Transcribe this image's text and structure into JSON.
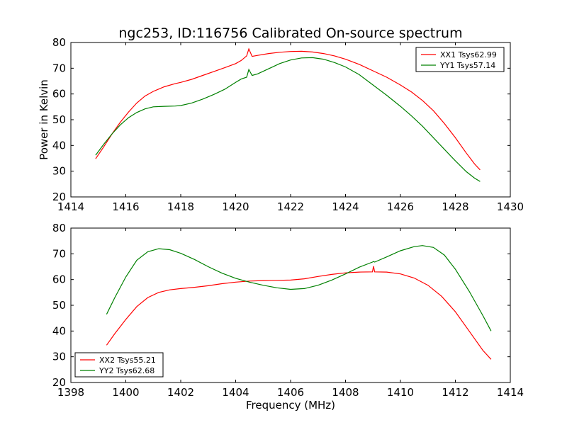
{
  "title": "ngc253, ID:116756 Calibrated On-source spectrum",
  "chart_data": [
    {
      "type": "line",
      "title": "ngc253, ID:116756 Calibrated On-source spectrum",
      "xlabel": "",
      "ylabel": "Power in Kelvin",
      "xlim": [
        1414,
        1430
      ],
      "ylim": [
        20,
        80
      ],
      "xticks": [
        "1414",
        "1416",
        "1418",
        "1420",
        "1422",
        "1424",
        "1426",
        "1428",
        "1430"
      ],
      "yticks": [
        "20",
        "30",
        "40",
        "50",
        "60",
        "70",
        "80"
      ],
      "grid": false,
      "legend_position": "top-right",
      "series": [
        {
          "name": "XX1 Tsys62.99",
          "color": "#ff0000",
          "x": [
            1414.9,
            1415.2,
            1415.5,
            1415.8,
            1416.1,
            1416.4,
            1416.7,
            1417.0,
            1417.4,
            1417.8,
            1418.0,
            1418.4,
            1418.8,
            1419.2,
            1419.6,
            1420.0,
            1420.2,
            1420.4,
            1420.48,
            1420.6,
            1420.8,
            1421.2,
            1421.6,
            1422.0,
            1422.4,
            1422.8,
            1423.2,
            1423.6,
            1424.0,
            1424.5,
            1425.0,
            1425.5,
            1426.0,
            1426.4,
            1426.8,
            1427.2,
            1427.6,
            1428.0,
            1428.4,
            1428.7,
            1428.9
          ],
          "y": [
            34.8,
            39.5,
            44.5,
            49.0,
            53.0,
            56.5,
            59.2,
            61.0,
            62.8,
            64.0,
            64.5,
            65.7,
            67.2,
            68.7,
            70.2,
            71.8,
            73.0,
            74.8,
            77.5,
            74.6,
            75.0,
            75.7,
            76.2,
            76.5,
            76.6,
            76.3,
            75.7,
            74.8,
            73.5,
            71.5,
            69.0,
            66.5,
            63.5,
            60.8,
            57.5,
            53.5,
            48.5,
            43.0,
            37.0,
            32.8,
            30.5
          ]
        },
        {
          "name": "YY1 Tsys57.14",
          "color": "#008000",
          "x": [
            1414.9,
            1415.2,
            1415.5,
            1415.8,
            1416.1,
            1416.4,
            1416.7,
            1417.0,
            1417.4,
            1417.8,
            1418.0,
            1418.4,
            1418.8,
            1419.2,
            1419.6,
            1420.0,
            1420.2,
            1420.4,
            1420.48,
            1420.6,
            1420.8,
            1421.2,
            1421.6,
            1422.0,
            1422.4,
            1422.8,
            1423.2,
            1423.6,
            1424.0,
            1424.5,
            1425.0,
            1425.5,
            1426.0,
            1426.4,
            1426.8,
            1427.2,
            1427.6,
            1428.0,
            1428.4,
            1428.7,
            1428.9
          ],
          "y": [
            36.2,
            40.5,
            44.5,
            48.0,
            50.8,
            52.8,
            54.2,
            55.0,
            55.2,
            55.3,
            55.5,
            56.5,
            58.0,
            59.8,
            61.8,
            64.5,
            65.8,
            66.5,
            69.5,
            67.2,
            67.8,
            69.8,
            71.8,
            73.2,
            74.0,
            74.1,
            73.5,
            72.2,
            70.5,
            67.5,
            63.5,
            59.5,
            55.2,
            51.5,
            47.5,
            43.0,
            38.5,
            34.0,
            29.8,
            27.3,
            26.0
          ]
        }
      ]
    },
    {
      "type": "line",
      "title": "",
      "xlabel": "Frequency (MHz)",
      "ylabel": "",
      "xlim": [
        1398,
        1414
      ],
      "ylim": [
        20,
        80
      ],
      "xticks": [
        "1398",
        "1400",
        "1402",
        "1404",
        "1406",
        "1408",
        "1410",
        "1412",
        "1414"
      ],
      "yticks": [
        "20",
        "30",
        "40",
        "50",
        "60",
        "70",
        "80"
      ],
      "grid": false,
      "legend_position": "bottom-left",
      "series": [
        {
          "name": "XX2 Tsys55.21",
          "color": "#ff0000",
          "x": [
            1399.3,
            1399.6,
            1400.0,
            1400.4,
            1400.8,
            1401.2,
            1401.6,
            1402.0,
            1402.5,
            1403.0,
            1403.5,
            1404.0,
            1404.5,
            1405.0,
            1405.5,
            1406.0,
            1406.5,
            1407.0,
            1407.5,
            1408.0,
            1408.5,
            1408.98,
            1409.02,
            1409.06,
            1409.5,
            1410.0,
            1410.5,
            1411.0,
            1411.5,
            1412.0,
            1412.5,
            1413.0,
            1413.3
          ],
          "y": [
            34.5,
            39.0,
            44.5,
            49.5,
            53.0,
            55.0,
            56.0,
            56.5,
            57.0,
            57.6,
            58.4,
            59.0,
            59.4,
            59.6,
            59.7,
            59.8,
            60.3,
            61.2,
            62.0,
            62.6,
            62.9,
            63.0,
            65.2,
            63.0,
            62.9,
            62.2,
            60.6,
            57.8,
            53.5,
            47.5,
            40.0,
            32.5,
            29.0
          ]
        },
        {
          "name": "YY2 Tsys62.68",
          "color": "#008000",
          "x": [
            1399.3,
            1399.6,
            1400.0,
            1400.4,
            1400.8,
            1401.2,
            1401.6,
            1402.0,
            1402.5,
            1403.0,
            1403.5,
            1404.0,
            1404.5,
            1405.0,
            1405.5,
            1406.0,
            1406.5,
            1407.0,
            1407.5,
            1408.0,
            1408.5,
            1408.98,
            1409.02,
            1409.06,
            1409.5,
            1410.0,
            1410.5,
            1410.8,
            1411.2,
            1411.6,
            1412.0,
            1412.5,
            1413.0,
            1413.3
          ],
          "y": [
            46.5,
            53.0,
            61.0,
            67.5,
            70.8,
            72.0,
            71.6,
            70.2,
            67.8,
            65.0,
            62.5,
            60.5,
            59.0,
            57.8,
            56.8,
            56.2,
            56.5,
            57.8,
            59.8,
            62.2,
            64.8,
            66.8,
            67.0,
            66.8,
            68.8,
            71.2,
            72.8,
            73.2,
            72.5,
            69.5,
            64.0,
            55.5,
            46.0,
            40.0
          ]
        }
      ]
    }
  ]
}
